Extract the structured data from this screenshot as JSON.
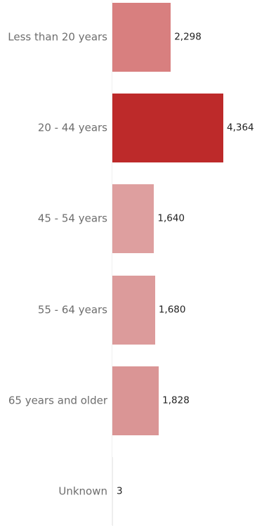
{
  "chart_data": {
    "type": "bar",
    "orientation": "horizontal",
    "categories": [
      "Less than 20 years",
      "20 -  44 years",
      "45 - 54 years",
      "55 - 64 years",
      "65 years and older",
      "Unknown"
    ],
    "values": [
      2298,
      4364,
      1640,
      1680,
      1828,
      3
    ],
    "value_labels": [
      "2,298",
      "4,364",
      "1,640",
      "1,680",
      "1,828",
      "3"
    ],
    "highlight_index": 1,
    "colors": {
      "highlight": "#bd2a2a",
      "default": "#d87f7f",
      "light": "#de9f9f",
      "mid": "#dc9696",
      "mid2": "#da9090"
    },
    "bar_colors": [
      "#d87f7f",
      "#bd2a2a",
      "#de9f9f",
      "#dc9b9b",
      "#da9595",
      "#ececec"
    ]
  }
}
